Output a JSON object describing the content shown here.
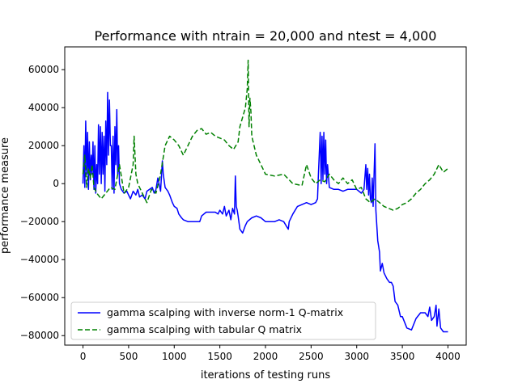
{
  "chart_data": {
    "type": "line",
    "title": "Performance with ntrain = 20,000 and ntest = 4,000",
    "xlabel": "iterations of testing runs",
    "ylabel": "performance measure",
    "xlim": [
      -200,
      4200
    ],
    "ylim": [
      -85000,
      72000
    ],
    "xticks": [
      0,
      500,
      1000,
      1500,
      2000,
      2500,
      3000,
      3500,
      4000
    ],
    "yticks": [
      -80000,
      -60000,
      -40000,
      -20000,
      0,
      20000,
      40000,
      60000
    ],
    "grid": false,
    "legend_position": "lower-left",
    "series": [
      {
        "name": "gamma scalping with inverse norm-1 Q-matrix",
        "color": "#0000ff",
        "linestyle": "solid",
        "points": [
          [
            0,
            0
          ],
          [
            10,
            20000
          ],
          [
            20,
            -2000
          ],
          [
            30,
            33000
          ],
          [
            40,
            5000
          ],
          [
            50,
            27000
          ],
          [
            60,
            -3000
          ],
          [
            70,
            22000
          ],
          [
            80,
            2000
          ],
          [
            90,
            15000
          ],
          [
            100,
            5000
          ],
          [
            110,
            22000
          ],
          [
            120,
            -3000
          ],
          [
            130,
            20000
          ],
          [
            140,
            -5000
          ],
          [
            150,
            10000
          ],
          [
            160,
            0
          ],
          [
            170,
            31000
          ],
          [
            180,
            5000
          ],
          [
            190,
            30000
          ],
          [
            200,
            0
          ],
          [
            210,
            27000
          ],
          [
            220,
            5000
          ],
          [
            230,
            25000
          ],
          [
            240,
            -4000
          ],
          [
            250,
            33000
          ],
          [
            260,
            10000
          ],
          [
            270,
            48000
          ],
          [
            280,
            15000
          ],
          [
            290,
            44000
          ],
          [
            300,
            20000
          ],
          [
            310,
            20000
          ],
          [
            320,
            -3000
          ],
          [
            330,
            25000
          ],
          [
            340,
            -5000
          ],
          [
            350,
            30000
          ],
          [
            360,
            10000
          ],
          [
            370,
            39000
          ],
          [
            380,
            5000
          ],
          [
            390,
            20000
          ],
          [
            400,
            0
          ],
          [
            420,
            -3000
          ],
          [
            450,
            -5000
          ],
          [
            480,
            -4000
          ],
          [
            500,
            -6000
          ],
          [
            520,
            -8000
          ],
          [
            550,
            -4000
          ],
          [
            580,
            -6000
          ],
          [
            600,
            -3000
          ],
          [
            620,
            -7000
          ],
          [
            650,
            -6000
          ],
          [
            680,
            -8000
          ],
          [
            700,
            -4000
          ],
          [
            730,
            -3000
          ],
          [
            760,
            -2000
          ],
          [
            780,
            -5000
          ],
          [
            800,
            -3000
          ],
          [
            820,
            3000
          ],
          [
            850,
            -4000
          ],
          [
            870,
            12000
          ],
          [
            880,
            5000
          ],
          [
            900,
            -2000
          ],
          [
            930,
            -4000
          ],
          [
            950,
            -6000
          ],
          [
            980,
            -10000
          ],
          [
            1000,
            -12000
          ],
          [
            1030,
            -13000
          ],
          [
            1050,
            -16000
          ],
          [
            1080,
            -18000
          ],
          [
            1100,
            -19000
          ],
          [
            1150,
            -20000
          ],
          [
            1200,
            -20000
          ],
          [
            1250,
            -20000
          ],
          [
            1280,
            -20000
          ],
          [
            1300,
            -17000
          ],
          [
            1350,
            -15000
          ],
          [
            1400,
            -15000
          ],
          [
            1450,
            -15000
          ],
          [
            1480,
            -16000
          ],
          [
            1500,
            -14000
          ],
          [
            1530,
            -16000
          ],
          [
            1550,
            -12000
          ],
          [
            1570,
            -17000
          ],
          [
            1600,
            -14000
          ],
          [
            1620,
            -19000
          ],
          [
            1640,
            -13000
          ],
          [
            1660,
            -16000
          ],
          [
            1670,
            4000
          ],
          [
            1680,
            -12000
          ],
          [
            1690,
            -14000
          ],
          [
            1700,
            -17000
          ],
          [
            1720,
            -24000
          ],
          [
            1750,
            -26000
          ],
          [
            1780,
            -22000
          ],
          [
            1800,
            -20000
          ],
          [
            1850,
            -18000
          ],
          [
            1900,
            -17000
          ],
          [
            1950,
            -18000
          ],
          [
            2000,
            -20000
          ],
          [
            2050,
            -20000
          ],
          [
            2100,
            -20000
          ],
          [
            2150,
            -19000
          ],
          [
            2200,
            -20000
          ],
          [
            2250,
            -24000
          ],
          [
            2260,
            -20000
          ],
          [
            2300,
            -16000
          ],
          [
            2350,
            -12000
          ],
          [
            2400,
            -11000
          ],
          [
            2450,
            -10000
          ],
          [
            2500,
            -11000
          ],
          [
            2550,
            -10000
          ],
          [
            2570,
            -8000
          ],
          [
            2580,
            5000
          ],
          [
            2600,
            27000
          ],
          [
            2610,
            0
          ],
          [
            2620,
            25000
          ],
          [
            2630,
            2000
          ],
          [
            2640,
            27000
          ],
          [
            2650,
            5000
          ],
          [
            2660,
            23000
          ],
          [
            2670,
            0
          ],
          [
            2680,
            10000
          ],
          [
            2700,
            -2000
          ],
          [
            2750,
            -3000
          ],
          [
            2800,
            -3000
          ],
          [
            2850,
            -4000
          ],
          [
            2900,
            -3000
          ],
          [
            2950,
            -3000
          ],
          [
            3000,
            -3000
          ],
          [
            3050,
            -5000
          ],
          [
            3080,
            -3000
          ],
          [
            3100,
            10000
          ],
          [
            3110,
            -3000
          ],
          [
            3120,
            8000
          ],
          [
            3130,
            -6000
          ],
          [
            3140,
            5000
          ],
          [
            3150,
            -8000
          ],
          [
            3160,
            -10000
          ],
          [
            3170,
            3000
          ],
          [
            3180,
            -12000
          ],
          [
            3200,
            21000
          ],
          [
            3210,
            -14000
          ],
          [
            3230,
            -30000
          ],
          [
            3250,
            -36000
          ],
          [
            3260,
            -46000
          ],
          [
            3280,
            -42000
          ],
          [
            3300,
            -47000
          ],
          [
            3330,
            -50000
          ],
          [
            3360,
            -52000
          ],
          [
            3380,
            -52000
          ],
          [
            3400,
            -54000
          ],
          [
            3420,
            -62000
          ],
          [
            3450,
            -64000
          ],
          [
            3480,
            -70000
          ],
          [
            3500,
            -70000
          ],
          [
            3550,
            -76000
          ],
          [
            3600,
            -77000
          ],
          [
            3650,
            -71000
          ],
          [
            3700,
            -68000
          ],
          [
            3750,
            -68000
          ],
          [
            3780,
            -70000
          ],
          [
            3800,
            -65000
          ],
          [
            3820,
            -72000
          ],
          [
            3850,
            -70000
          ],
          [
            3870,
            -64000
          ],
          [
            3880,
            -75000
          ],
          [
            3900,
            -66000
          ],
          [
            3920,
            -76000
          ],
          [
            3950,
            -78000
          ],
          [
            4000,
            -78000
          ]
        ]
      },
      {
        "name": "gamma scalping with tabular Q matrix",
        "color": "#008000",
        "linestyle": "dashed",
        "points": [
          [
            0,
            5000
          ],
          [
            20,
            15000
          ],
          [
            40,
            -2000
          ],
          [
            60,
            8000
          ],
          [
            80,
            3000
          ],
          [
            100,
            10000
          ],
          [
            120,
            -2000
          ],
          [
            150,
            -5000
          ],
          [
            200,
            -8000
          ],
          [
            250,
            -5000
          ],
          [
            300,
            -2000
          ],
          [
            350,
            -3000
          ],
          [
            400,
            10000
          ],
          [
            450,
            -5000
          ],
          [
            500,
            -2000
          ],
          [
            550,
            10000
          ],
          [
            560,
            25000
          ],
          [
            580,
            5000
          ],
          [
            600,
            0
          ],
          [
            650,
            -5000
          ],
          [
            700,
            -10000
          ],
          [
            750,
            -3000
          ],
          [
            800,
            -5000
          ],
          [
            850,
            5000
          ],
          [
            900,
            20000
          ],
          [
            950,
            25000
          ],
          [
            1000,
            23000
          ],
          [
            1050,
            20000
          ],
          [
            1100,
            15000
          ],
          [
            1150,
            20000
          ],
          [
            1200,
            25000
          ],
          [
            1250,
            28000
          ],
          [
            1300,
            29000
          ],
          [
            1350,
            26000
          ],
          [
            1400,
            27000
          ],
          [
            1450,
            25000
          ],
          [
            1500,
            24000
          ],
          [
            1550,
            23000
          ],
          [
            1600,
            20000
          ],
          [
            1650,
            18000
          ],
          [
            1700,
            22000
          ],
          [
            1720,
            30000
          ],
          [
            1750,
            35000
          ],
          [
            1780,
            40000
          ],
          [
            1800,
            50000
          ],
          [
            1810,
            65000
          ],
          [
            1820,
            30000
          ],
          [
            1830,
            45000
          ],
          [
            1840,
            38000
          ],
          [
            1850,
            25000
          ],
          [
            1900,
            15000
          ],
          [
            1950,
            10000
          ],
          [
            2000,
            5000
          ],
          [
            2100,
            4000
          ],
          [
            2200,
            5000
          ],
          [
            2300,
            0
          ],
          [
            2400,
            -1000
          ],
          [
            2450,
            10000
          ],
          [
            2500,
            3000
          ],
          [
            2550,
            0
          ],
          [
            2600,
            2000
          ],
          [
            2650,
            1000
          ],
          [
            2700,
            5000
          ],
          [
            2750,
            2000
          ],
          [
            2800,
            0
          ],
          [
            2850,
            3000
          ],
          [
            2900,
            0
          ],
          [
            2950,
            2000
          ],
          [
            3000,
            -3000
          ],
          [
            3050,
            -2000
          ],
          [
            3100,
            -8000
          ],
          [
            3150,
            -10000
          ],
          [
            3200,
            -8000
          ],
          [
            3250,
            -10000
          ],
          [
            3300,
            -12000
          ],
          [
            3350,
            -13000
          ],
          [
            3400,
            -14000
          ],
          [
            3450,
            -13000
          ],
          [
            3500,
            -11000
          ],
          [
            3550,
            -10000
          ],
          [
            3600,
            -8000
          ],
          [
            3650,
            -5000
          ],
          [
            3700,
            -3000
          ],
          [
            3750,
            0
          ],
          [
            3800,
            2000
          ],
          [
            3850,
            5000
          ],
          [
            3900,
            10000
          ],
          [
            3950,
            6000
          ],
          [
            4000,
            8000
          ]
        ]
      }
    ]
  }
}
